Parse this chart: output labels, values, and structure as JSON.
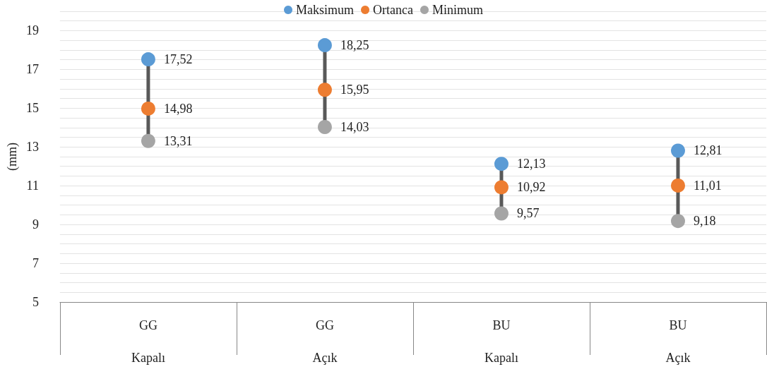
{
  "chart_data": {
    "type": "scatter",
    "ylabel": "(mm)",
    "categories": [
      "GG\nKapalı",
      "GG\nAçık",
      "BU\nKapalı",
      "BU\nAçık"
    ],
    "series": [
      {
        "name": "Maksimum",
        "color": "#5b9bd5",
        "values": [
          17.52,
          18.25,
          12.13,
          12.81
        ],
        "value_labels": [
          "17,52",
          "18,25",
          "12,13",
          "12,81"
        ]
      },
      {
        "name": "Ortanca",
        "color": "#ed7d31",
        "values": [
          14.98,
          15.95,
          10.92,
          11.01
        ],
        "value_labels": [
          "14,98",
          "15,95",
          "10,92",
          "11,01"
        ]
      },
      {
        "name": "Minimum",
        "color": "#a5a5a5",
        "values": [
          13.31,
          14.03,
          9.57,
          9.18
        ],
        "value_labels": [
          "13,31",
          "14,03",
          "9,57",
          "9,18"
        ]
      }
    ],
    "ylim": [
      5,
      20
    ],
    "yticks": [
      5,
      {
        "value": 5.5,
        "label": null
      },
      {
        "value": 6,
        "label": null
      },
      {
        "value": 6.5,
        "label": null
      },
      7,
      {
        "value": 7.5,
        "label": null
      },
      {
        "value": 8,
        "label": null
      },
      {
        "value": 8.5,
        "label": null
      },
      9,
      {
        "value": 9.5,
        "label": null
      },
      {
        "value": 10,
        "label": null
      },
      {
        "value": 10.5,
        "label": null
      },
      11,
      {
        "value": 11.5,
        "label": null
      },
      {
        "value": 12,
        "label": null
      },
      {
        "value": 12.5,
        "label": null
      },
      13,
      {
        "value": 13.5,
        "label": null
      },
      {
        "value": 14,
        "label": null
      },
      {
        "value": 14.5,
        "label": null
      },
      15,
      {
        "value": 15.5,
        "label": null
      },
      {
        "value": 16,
        "label": null
      },
      {
        "value": 16.5,
        "label": null
      },
      17,
      {
        "value": 17.5,
        "label": null
      },
      {
        "value": 18,
        "label": null
      },
      {
        "value": 18.5,
        "label": null
      },
      19,
      {
        "value": 19.5,
        "label": null
      },
      {
        "value": 20,
        "label": null
      }
    ],
    "grid": "y",
    "legend": "top",
    "marker": "circle"
  }
}
